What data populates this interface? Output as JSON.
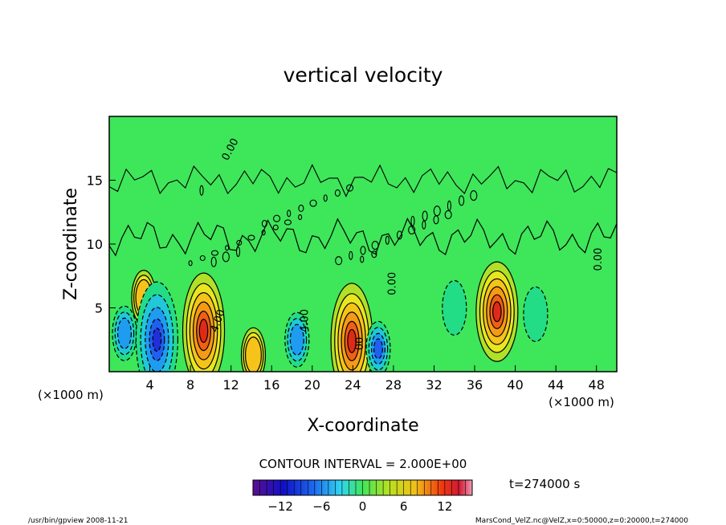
{
  "chart_data": {
    "type": "heatmap",
    "title": "vertical velocity",
    "xlabel": "X-coordinate",
    "ylabel": "Z-coordinate",
    "x_unit_left": "(×1000 m)",
    "x_unit_right": "(×1000 m)",
    "xlim": [
      0,
      50
    ],
    "ylim": [
      0,
      20
    ],
    "x_ticks": [
      4,
      8,
      12,
      16,
      20,
      24,
      28,
      32,
      36,
      40,
      44,
      48
    ],
    "y_ticks": [
      5,
      10,
      15
    ],
    "contour_interval_text": "CONTOUR INTERVAL = 2.000E+00",
    "time_text": "t=274000 s",
    "colorbar": {
      "range": [
        -16,
        16
      ],
      "ticks": [
        -12,
        -6,
        0,
        6,
        12
      ]
    },
    "contour_labels": [
      {
        "text": "0.00",
        "x": 12.2,
        "z": 17.3,
        "angle": -62
      },
      {
        "text": "4.00",
        "x": 11.0,
        "z": 3.9,
        "angle": -70
      },
      {
        "text": "4.00",
        "x": 19.6,
        "z": 4.0,
        "angle": -90
      },
      {
        "text": "0.00",
        "x": 28.2,
        "z": 6.9,
        "angle": -90
      },
      {
        "text": "0.00",
        "x": 48.5,
        "z": 8.8,
        "angle": -90
      },
      {
        "text": "00",
        "x": 25.0,
        "z": 2.2,
        "angle": -90
      }
    ],
    "features": [
      {
        "kind": "updraft",
        "x": 9.3,
        "z": 3.2,
        "peak": 12
      },
      {
        "kind": "updraft",
        "x": 23.9,
        "z": 2.4,
        "peak": 12
      },
      {
        "kind": "updraft",
        "x": 38.2,
        "z": 4.7,
        "peak": 12
      },
      {
        "kind": "updraft",
        "x": 3.4,
        "z": 5.8,
        "peak": 6
      },
      {
        "kind": "updraft",
        "x": 14.2,
        "z": 1.3,
        "peak": 6
      },
      {
        "kind": "downdraft",
        "x": 1.5,
        "z": 3.0,
        "peak": -6
      },
      {
        "kind": "downdraft",
        "x": 4.7,
        "z": 2.5,
        "peak": -10
      },
      {
        "kind": "downdraft",
        "x": 18.5,
        "z": 2.5,
        "peak": -6
      },
      {
        "kind": "downdraft",
        "x": 26.5,
        "z": 1.8,
        "peak": -8
      },
      {
        "kind": "downdraft",
        "x": 34.0,
        "z": 5.0,
        "peak": -2
      },
      {
        "kind": "downdraft",
        "x": 42.0,
        "z": 4.5,
        "peak": -2
      }
    ]
  },
  "footer": {
    "left": "/usr/bin/gpview   2008-11-21",
    "right": "MarsCond_VelZ.nc@VelZ,x=0:50000,z=0:20000,t=274000"
  }
}
